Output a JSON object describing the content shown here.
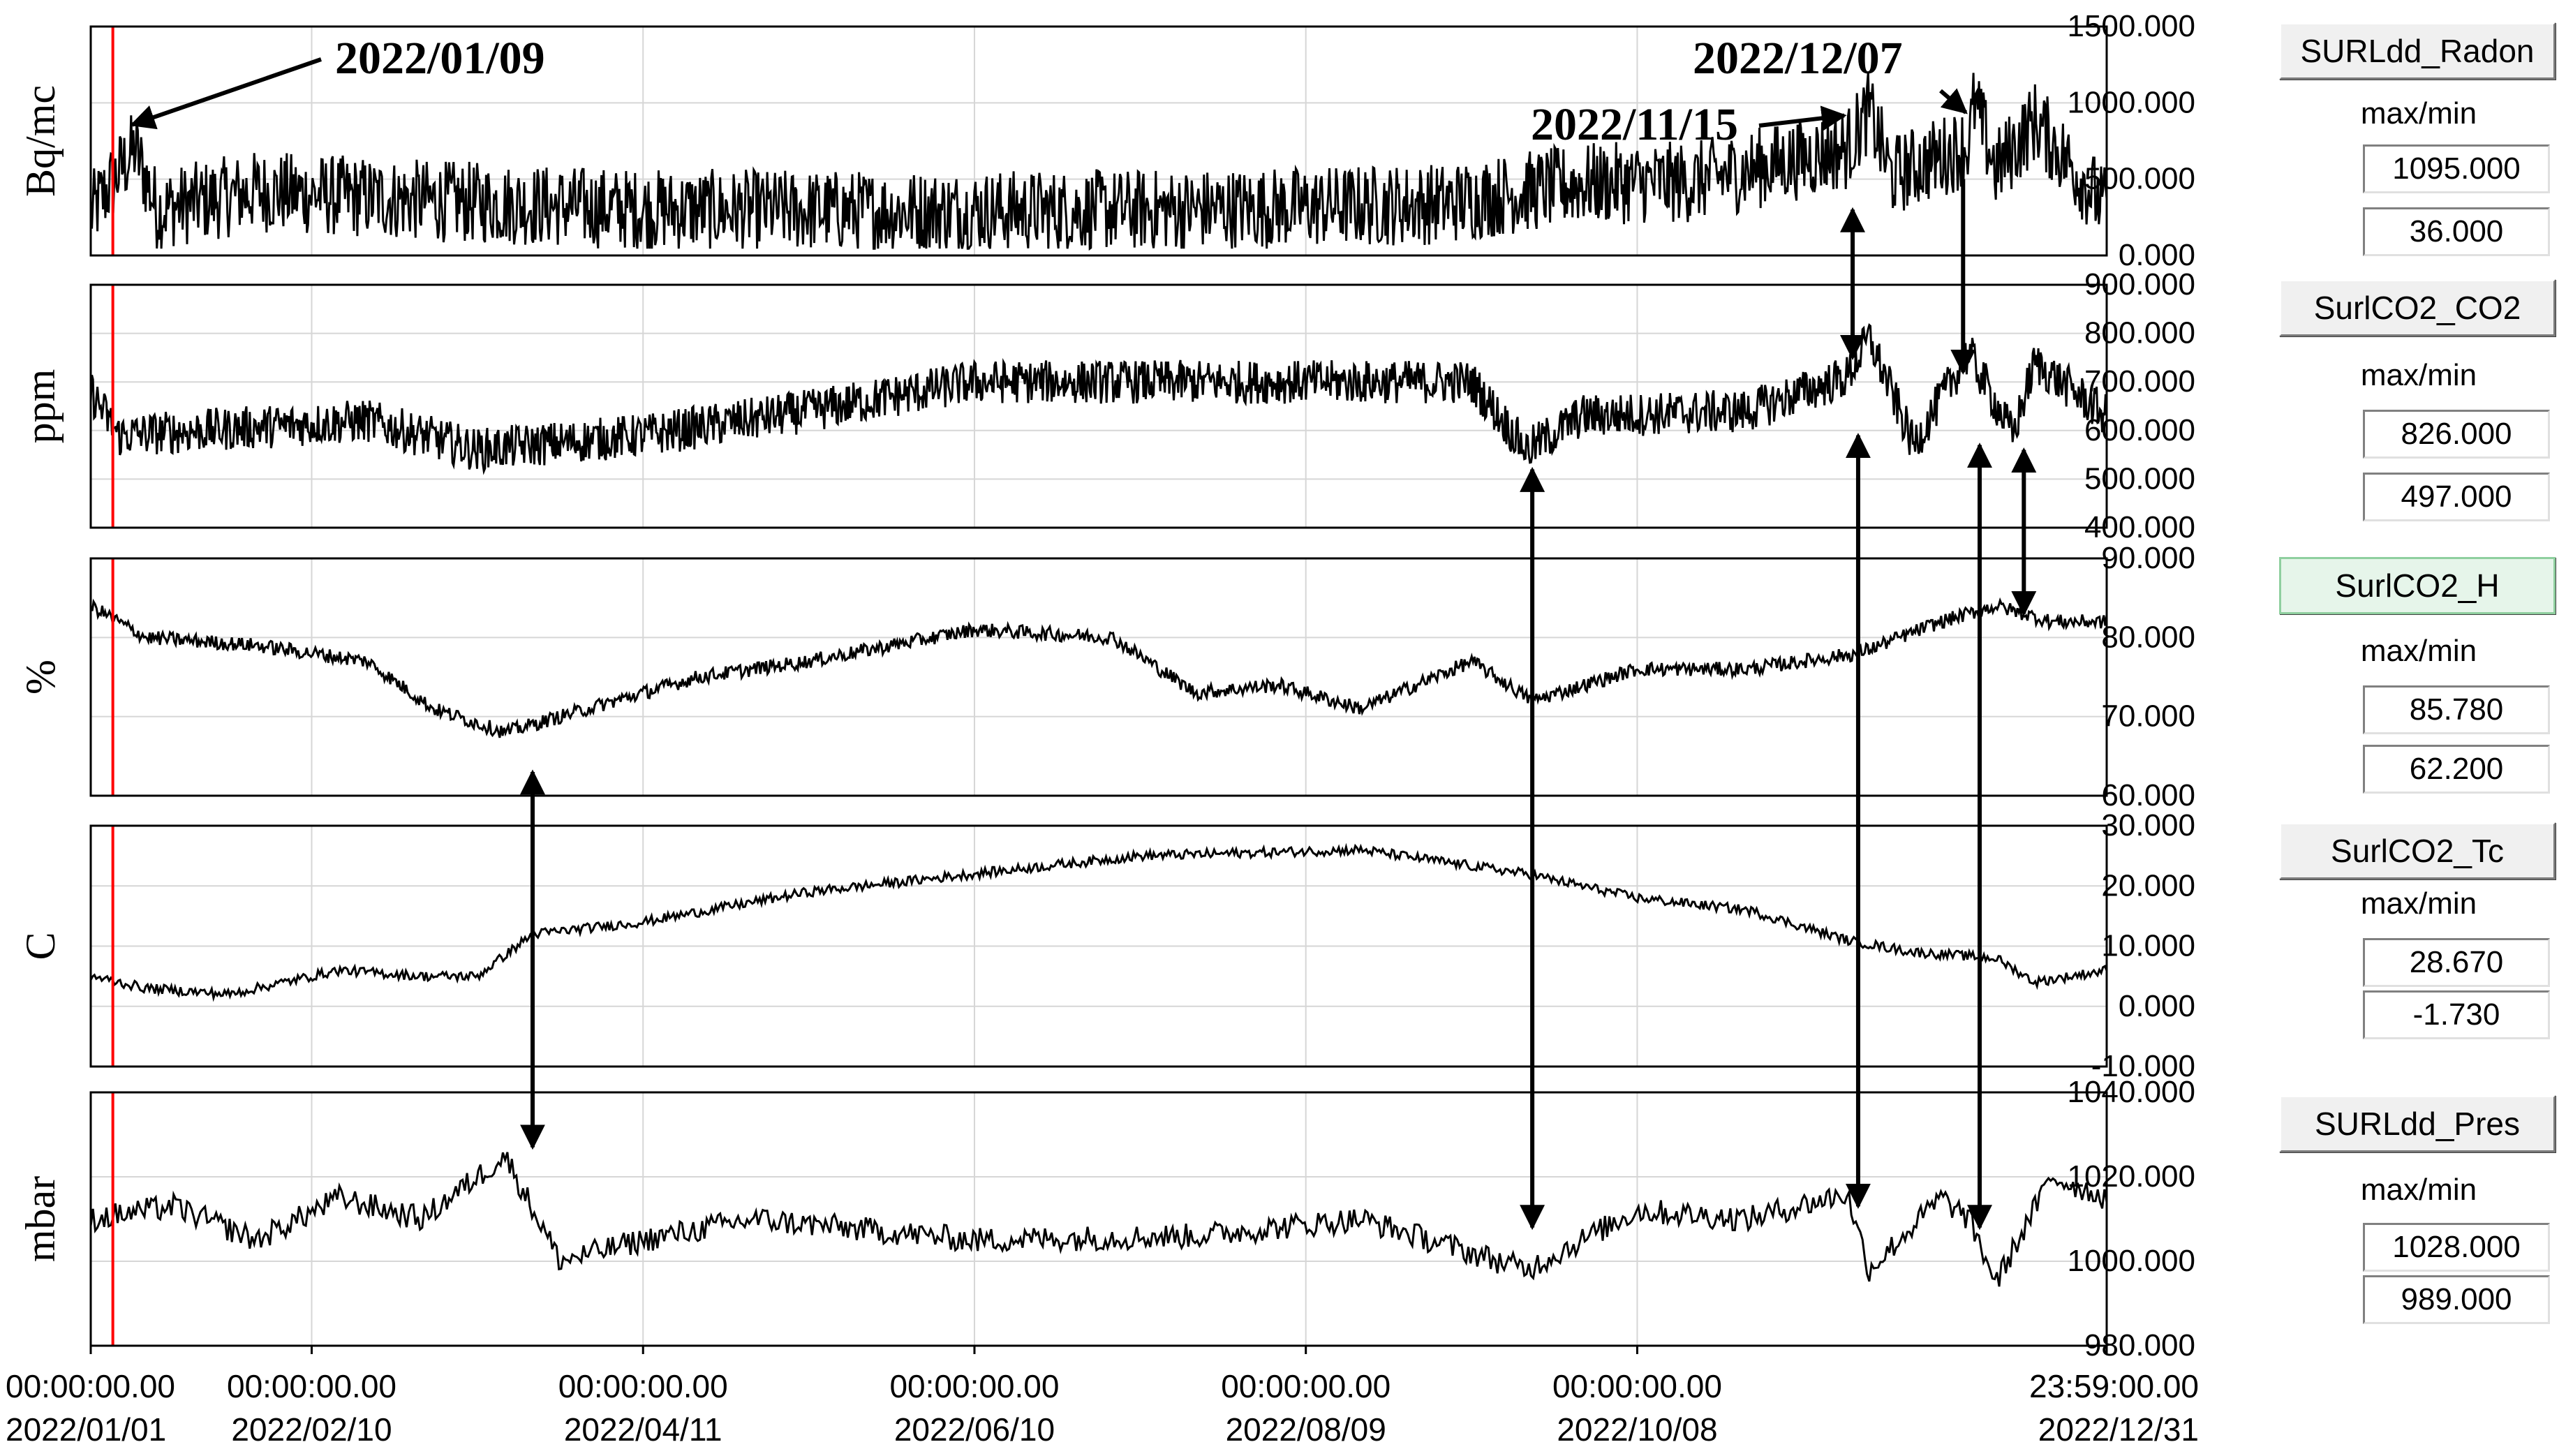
{
  "chart_data": {
    "type": "line",
    "x_range": [
      "2022/01/01 00:00:00.00",
      "2022/12/31 23:59:00.00"
    ],
    "x_ticks": [
      {
        "time": "00:00:00.00",
        "date": "2022/01/01",
        "day": 0
      },
      {
        "time": "00:00:00.00",
        "date": "2022/02/10",
        "day": 40
      },
      {
        "time": "00:00:00.00",
        "date": "2022/04/11",
        "day": 100
      },
      {
        "time": "00:00:00.00",
        "date": "2022/06/10",
        "day": 160
      },
      {
        "time": "00:00:00.00",
        "date": "2022/08/09",
        "day": 220
      },
      {
        "time": "00:00:00.00",
        "date": "2022/10/08",
        "day": 280
      },
      {
        "time": "23:59:00.00",
        "date": "2022/12/31",
        "day": 365
      }
    ],
    "cursor_day": 4,
    "panels": [
      {
        "id": "radon",
        "ylabel": "Bq/mc",
        "ylim": [
          0,
          1500
        ],
        "ticks": [
          "1500.000",
          "1000.000",
          "500.000",
          "0.000"
        ],
        "button": "SURLdd_Radon",
        "max": "1095.000",
        "min": "36.000",
        "anchors": [
          [
            0,
            270
          ],
          [
            8,
            700
          ],
          [
            12,
            300
          ],
          [
            30,
            420
          ],
          [
            60,
            360
          ],
          [
            100,
            300
          ],
          [
            150,
            290
          ],
          [
            200,
            300
          ],
          [
            245,
            340
          ],
          [
            270,
            470
          ],
          [
            290,
            480
          ],
          [
            318,
            700
          ],
          [
            322,
            950
          ],
          [
            326,
            520
          ],
          [
            340,
            720
          ],
          [
            341,
            1000
          ],
          [
            345,
            560
          ],
          [
            352,
            880
          ],
          [
            365,
            300
          ]
        ]
      },
      {
        "id": "co2",
        "ylabel": "ppm",
        "ylim": [
          400,
          900
        ],
        "ticks": [
          "900.000",
          "800.000",
          "700.000",
          "600.000",
          "500.000",
          "400.000"
        ],
        "button": "SurlCO2_CO2",
        "max": "826.000",
        "min": "497.000",
        "anchors": [
          [
            0,
            680
          ],
          [
            5,
            590
          ],
          [
            20,
            600
          ],
          [
            50,
            620
          ],
          [
            70,
            560
          ],
          [
            100,
            590
          ],
          [
            130,
            640
          ],
          [
            160,
            700
          ],
          [
            190,
            700
          ],
          [
            230,
            700
          ],
          [
            250,
            700
          ],
          [
            260,
            560
          ],
          [
            270,
            630
          ],
          [
            300,
            640
          ],
          [
            318,
            710
          ],
          [
            322,
            790
          ],
          [
            330,
            570
          ],
          [
            340,
            760
          ],
          [
            348,
            590
          ],
          [
            352,
            740
          ],
          [
            365,
            630
          ]
        ]
      },
      {
        "id": "humidity",
        "ylabel": "%",
        "ylim": [
          60,
          90
        ],
        "ticks": [
          "90.000",
          "80.000",
          "70.000",
          "60.000"
        ],
        "button": "SurlCO2_H",
        "max": "85.780",
        "min": "62.200",
        "anchors": [
          [
            0,
            84
          ],
          [
            10,
            80
          ],
          [
            30,
            79
          ],
          [
            50,
            77
          ],
          [
            62,
            71
          ],
          [
            75,
            68
          ],
          [
            95,
            72
          ],
          [
            110,
            75
          ],
          [
            130,
            77
          ],
          [
            160,
            81
          ],
          [
            185,
            80
          ],
          [
            200,
            73
          ],
          [
            215,
            74
          ],
          [
            230,
            71
          ],
          [
            250,
            77
          ],
          [
            261,
            72
          ],
          [
            280,
            76
          ],
          [
            300,
            76
          ],
          [
            320,
            78
          ],
          [
            335,
            82
          ],
          [
            345,
            84
          ],
          [
            355,
            82
          ],
          [
            365,
            82
          ]
        ]
      },
      {
        "id": "temperature",
        "ylabel": "C",
        "ylim": [
          -10,
          30
        ],
        "ticks": [
          "30.000",
          "20.000",
          "10.000",
          "0.000",
          "-10.000"
        ],
        "button": "SurlCO2_Tc",
        "max": "28.670",
        "min": "-1.730",
        "anchors": [
          [
            0,
            5
          ],
          [
            10,
            3
          ],
          [
            25,
            2
          ],
          [
            45,
            6
          ],
          [
            60,
            5
          ],
          [
            70,
            5
          ],
          [
            80,
            12
          ],
          [
            100,
            14
          ],
          [
            130,
            19
          ],
          [
            160,
            22
          ],
          [
            190,
            25
          ],
          [
            230,
            26
          ],
          [
            245,
            24
          ],
          [
            260,
            22
          ],
          [
            280,
            18
          ],
          [
            300,
            16
          ],
          [
            318,
            11
          ],
          [
            330,
            9
          ],
          [
            345,
            8
          ],
          [
            352,
            4
          ],
          [
            365,
            6
          ]
        ]
      },
      {
        "id": "pressure",
        "ylabel": "mbar",
        "ylim": [
          980,
          1040
        ],
        "ticks": [
          "1040.000",
          "1020.000",
          "1000.000",
          "980.000"
        ],
        "button": "SURLdd_Pres",
        "max": "1028.000",
        "min": "989.000",
        "anchors": [
          [
            0,
            1010
          ],
          [
            15,
            1013
          ],
          [
            30,
            1005
          ],
          [
            45,
            1015
          ],
          [
            60,
            1010
          ],
          [
            75,
            1025
          ],
          [
            85,
            1000
          ],
          [
            100,
            1005
          ],
          [
            120,
            1010
          ],
          [
            160,
            1005
          ],
          [
            200,
            1006
          ],
          [
            230,
            1010
          ],
          [
            260,
            998
          ],
          [
            280,
            1012
          ],
          [
            300,
            1010
          ],
          [
            318,
            1016
          ],
          [
            322,
            998
          ],
          [
            335,
            1015
          ],
          [
            340,
            1010
          ],
          [
            345,
            995
          ],
          [
            355,
            1020
          ],
          [
            365,
            1015
          ]
        ]
      }
    ],
    "annotations": [
      {
        "text": "2022/01/09",
        "day": 8,
        "panel": "radon",
        "value": 820
      },
      {
        "text": "2022/11/15",
        "day": 318,
        "panel": "radon",
        "value": 880
      },
      {
        "text": "2022/12/07",
        "day": 340,
        "panel": "radon",
        "value": 900
      }
    ],
    "arrows": [
      {
        "day": 80,
        "from": [
          "humidity",
          63
        ],
        "to": [
          "pressure",
          1027
        ],
        "double": true
      },
      {
        "day": 261,
        "from": [
          "co2",
          520
        ],
        "to": [
          "pressure",
          1008
        ],
        "double": true
      },
      {
        "day": 319,
        "from": [
          "radon",
          300
        ],
        "to": [
          "co2",
          750
        ],
        "double": true
      },
      {
        "day": 320,
        "from": [
          "co2",
          590
        ],
        "to": [
          "pressure",
          1013
        ],
        "double": true
      },
      {
        "day": 339,
        "from": [
          "radon",
          500
        ],
        "to": [
          "co2",
          720
        ],
        "double": false
      },
      {
        "day": 342,
        "from": [
          "co2",
          570
        ],
        "to": [
          "pressure",
          1008
        ],
        "double": true
      },
      {
        "day": 350,
        "from": [
          "co2",
          560
        ],
        "to": [
          "humidity",
          83
        ],
        "double": true
      }
    ]
  },
  "side_panel": {
    "max_min_label": "max/min"
  }
}
